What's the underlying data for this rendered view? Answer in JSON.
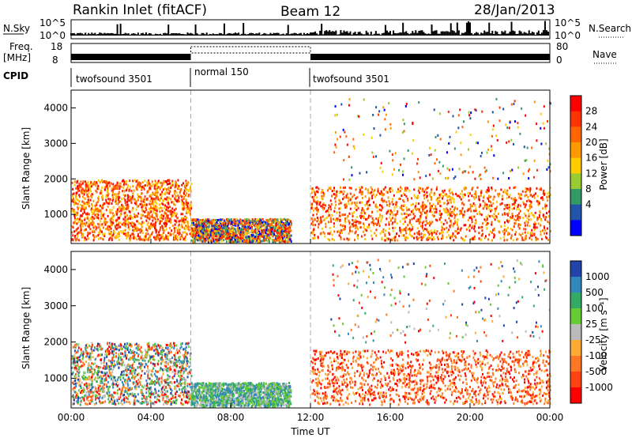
{
  "header": {
    "title": "Rankin Inlet (fitACF)",
    "beam": "Beam 12",
    "date": "28/Jan/2013"
  },
  "strip_labels": {
    "nsky": "N.Sky",
    "nsearch": "N.Search",
    "freq": "Freq.",
    "mhz": "[MHz]",
    "nave": "Nave",
    "cpid": "CPID",
    "nsky_ticks": [
      "10^5",
      "10^0"
    ],
    "nsearch_ticks": [
      "10^5",
      "10^0"
    ],
    "freq_ticks": [
      "18",
      "8"
    ],
    "nave_ticks": [
      "80",
      "0"
    ]
  },
  "cpid_segments": [
    {
      "label": "twofsound 3501",
      "start_h": 0,
      "end_h": 6
    },
    {
      "label": "normal 150",
      "start_h": 6,
      "end_h": 12
    },
    {
      "label": "twofsound 3501",
      "start_h": 12,
      "end_h": 24
    }
  ],
  "chart_data": [
    {
      "type": "heatmap",
      "quantity": "Power",
      "xlabel": "",
      "ylabel": "Slant Range [km]",
      "xlim": [
        0,
        24
      ],
      "ylim": [
        180,
        4500
      ],
      "y_ticks": [
        "1000",
        "2000",
        "3000",
        "4000"
      ],
      "colorbar_label": "Power [dB]",
      "colorbar_ticks": [
        "28",
        "24",
        "20",
        "16",
        "12",
        "8",
        "4"
      ],
      "colorbar_colors": [
        "#ff0000",
        "#ff3300",
        "#ff6600",
        "#ff9900",
        "#ffcc00",
        "#99cc33",
        "#339966",
        "#2255aa",
        "#0000ff"
      ],
      "regions": [
        {
          "x0": 0,
          "x1": 6,
          "y0": 300,
          "y1": 2000,
          "level": "high"
        },
        {
          "x0": 6,
          "x1": 11,
          "y0": 250,
          "y1": 900,
          "level": "mixed"
        },
        {
          "x0": 12,
          "x1": 24,
          "y0": 300,
          "y1": 1800,
          "level": "high"
        },
        {
          "x0": 13,
          "x1": 24,
          "y0": 2000,
          "y1": 4300,
          "level": "sparse"
        }
      ]
    },
    {
      "type": "heatmap",
      "quantity": "Velocity",
      "xlabel": "Time UT",
      "ylabel": "Slant Range [km]",
      "xlim": [
        0,
        24
      ],
      "ylim": [
        180,
        4500
      ],
      "y_ticks": [
        "1000",
        "2000",
        "3000",
        "4000"
      ],
      "x_ticks": [
        "00:00",
        "04:00",
        "08:00",
        "12:00",
        "16:00",
        "20:00",
        "00:00"
      ],
      "colorbar_label": "Velocity [m s⁻¹]",
      "colorbar_ticks": [
        "1000",
        "500",
        "100",
        "25",
        "-25",
        "-100",
        "-500",
        "-1000"
      ],
      "colorbar_colors": [
        "#2244aa",
        "#3388bb",
        "#33aa66",
        "#66cc33",
        "#bbbbbb",
        "#ffaa33",
        "#ff7722",
        "#ff4411",
        "#ff0000"
      ],
      "regions": [
        {
          "x0": 0,
          "x1": 6,
          "y0": 300,
          "y1": 2000,
          "level": "mixed"
        },
        {
          "x0": 6,
          "x1": 11,
          "y0": 250,
          "y1": 900,
          "level": "positive"
        },
        {
          "x0": 12,
          "x1": 24,
          "y0": 300,
          "y1": 1800,
          "level": "negative"
        },
        {
          "x0": 13,
          "x1": 24,
          "y0": 2000,
          "y1": 4300,
          "level": "sparse"
        }
      ]
    }
  ]
}
